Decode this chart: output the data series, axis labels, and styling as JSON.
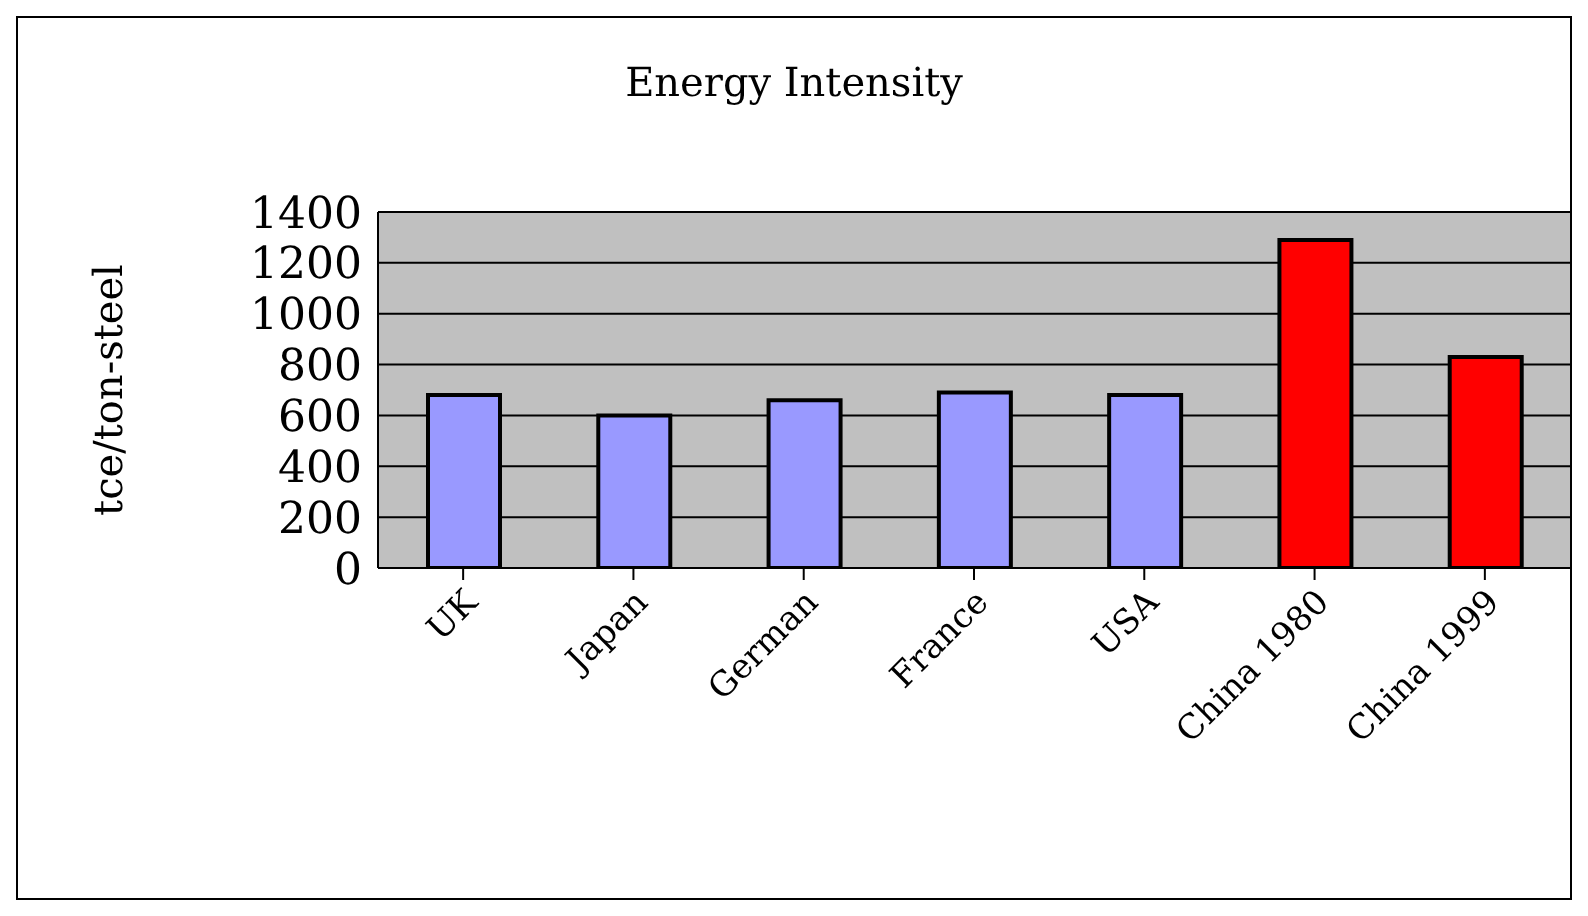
{
  "chart_data": {
    "type": "bar",
    "title": "Energy Intensity",
    "ylabel": "tce/ton-steel",
    "categories": [
      "UK",
      "Japan",
      "German",
      "France",
      "USA",
      "China 1980",
      "China 1999"
    ],
    "values": [
      680,
      600,
      660,
      690,
      680,
      1290,
      830
    ],
    "colors": [
      "#9999ff",
      "#9999ff",
      "#9999ff",
      "#9999ff",
      "#9999ff",
      "#ff0000",
      "#ff0000"
    ],
    "ylim": [
      0,
      1400
    ],
    "yticks": [
      0,
      200,
      400,
      600,
      800,
      1000,
      1200,
      1400
    ],
    "grid": "y",
    "legend": false
  }
}
